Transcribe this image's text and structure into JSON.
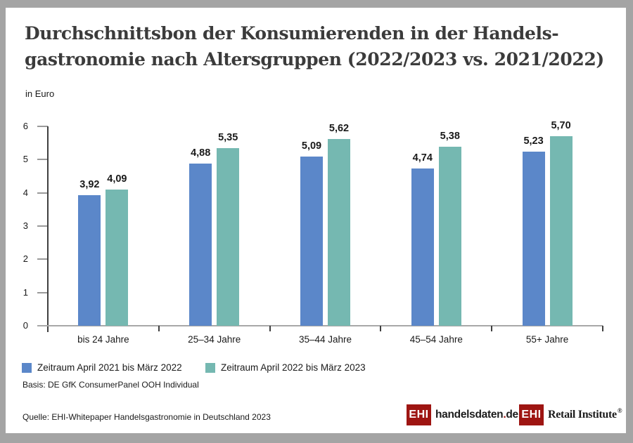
{
  "header": {
    "title_line1": "Durchschnittsbon der Konsumierenden in der Handels-",
    "title_line2": "gastronomie nach Altersgruppen (2022/2023 vs. 2021/2022)",
    "unit_label": "in Euro"
  },
  "chart_data": {
    "type": "bar",
    "categories": [
      "bis 24 Jahre",
      "25–34 Jahre",
      "35–44 Jahre",
      "45–54 Jahre",
      "55+ Jahre"
    ],
    "series": [
      {
        "name": "Zeitraum April 2021 bis März 2022",
        "color": "#5b87c9",
        "values": [
          3.92,
          4.88,
          5.09,
          4.74,
          5.23
        ]
      },
      {
        "name": "Zeitraum April 2022 bis März 2023",
        "color": "#75b8b1",
        "values": [
          4.09,
          5.35,
          5.62,
          5.38,
          5.7
        ]
      }
    ],
    "value_labels": [
      [
        "3,92",
        "4,88",
        "5,09",
        "4,74",
        "5,23"
      ],
      [
        "4,09",
        "5,35",
        "5,62",
        "5,38",
        "5,70"
      ]
    ],
    "ylabel": "in Euro",
    "ylim": [
      0,
      6
    ],
    "yticks": [
      0,
      1,
      2,
      3,
      4,
      5,
      6
    ],
    "grid": false,
    "legend_position": "bottom-left",
    "decimal_separator": ","
  },
  "footnotes": {
    "basis": "Basis: DE GfK ConsumerPanel OOH Individual",
    "source": "Quelle: EHI-Whitepaper Handelsgastronomie in Deutschland 2023"
  },
  "logos": {
    "brand_red": "#9e1512",
    "handelsdaten": {
      "mark": "EHI",
      "name": "handelsdaten",
      "dot": ".",
      "tld": "de"
    },
    "retail": {
      "mark": "EHI",
      "text": "Retail Institute",
      "registered": "®"
    }
  }
}
